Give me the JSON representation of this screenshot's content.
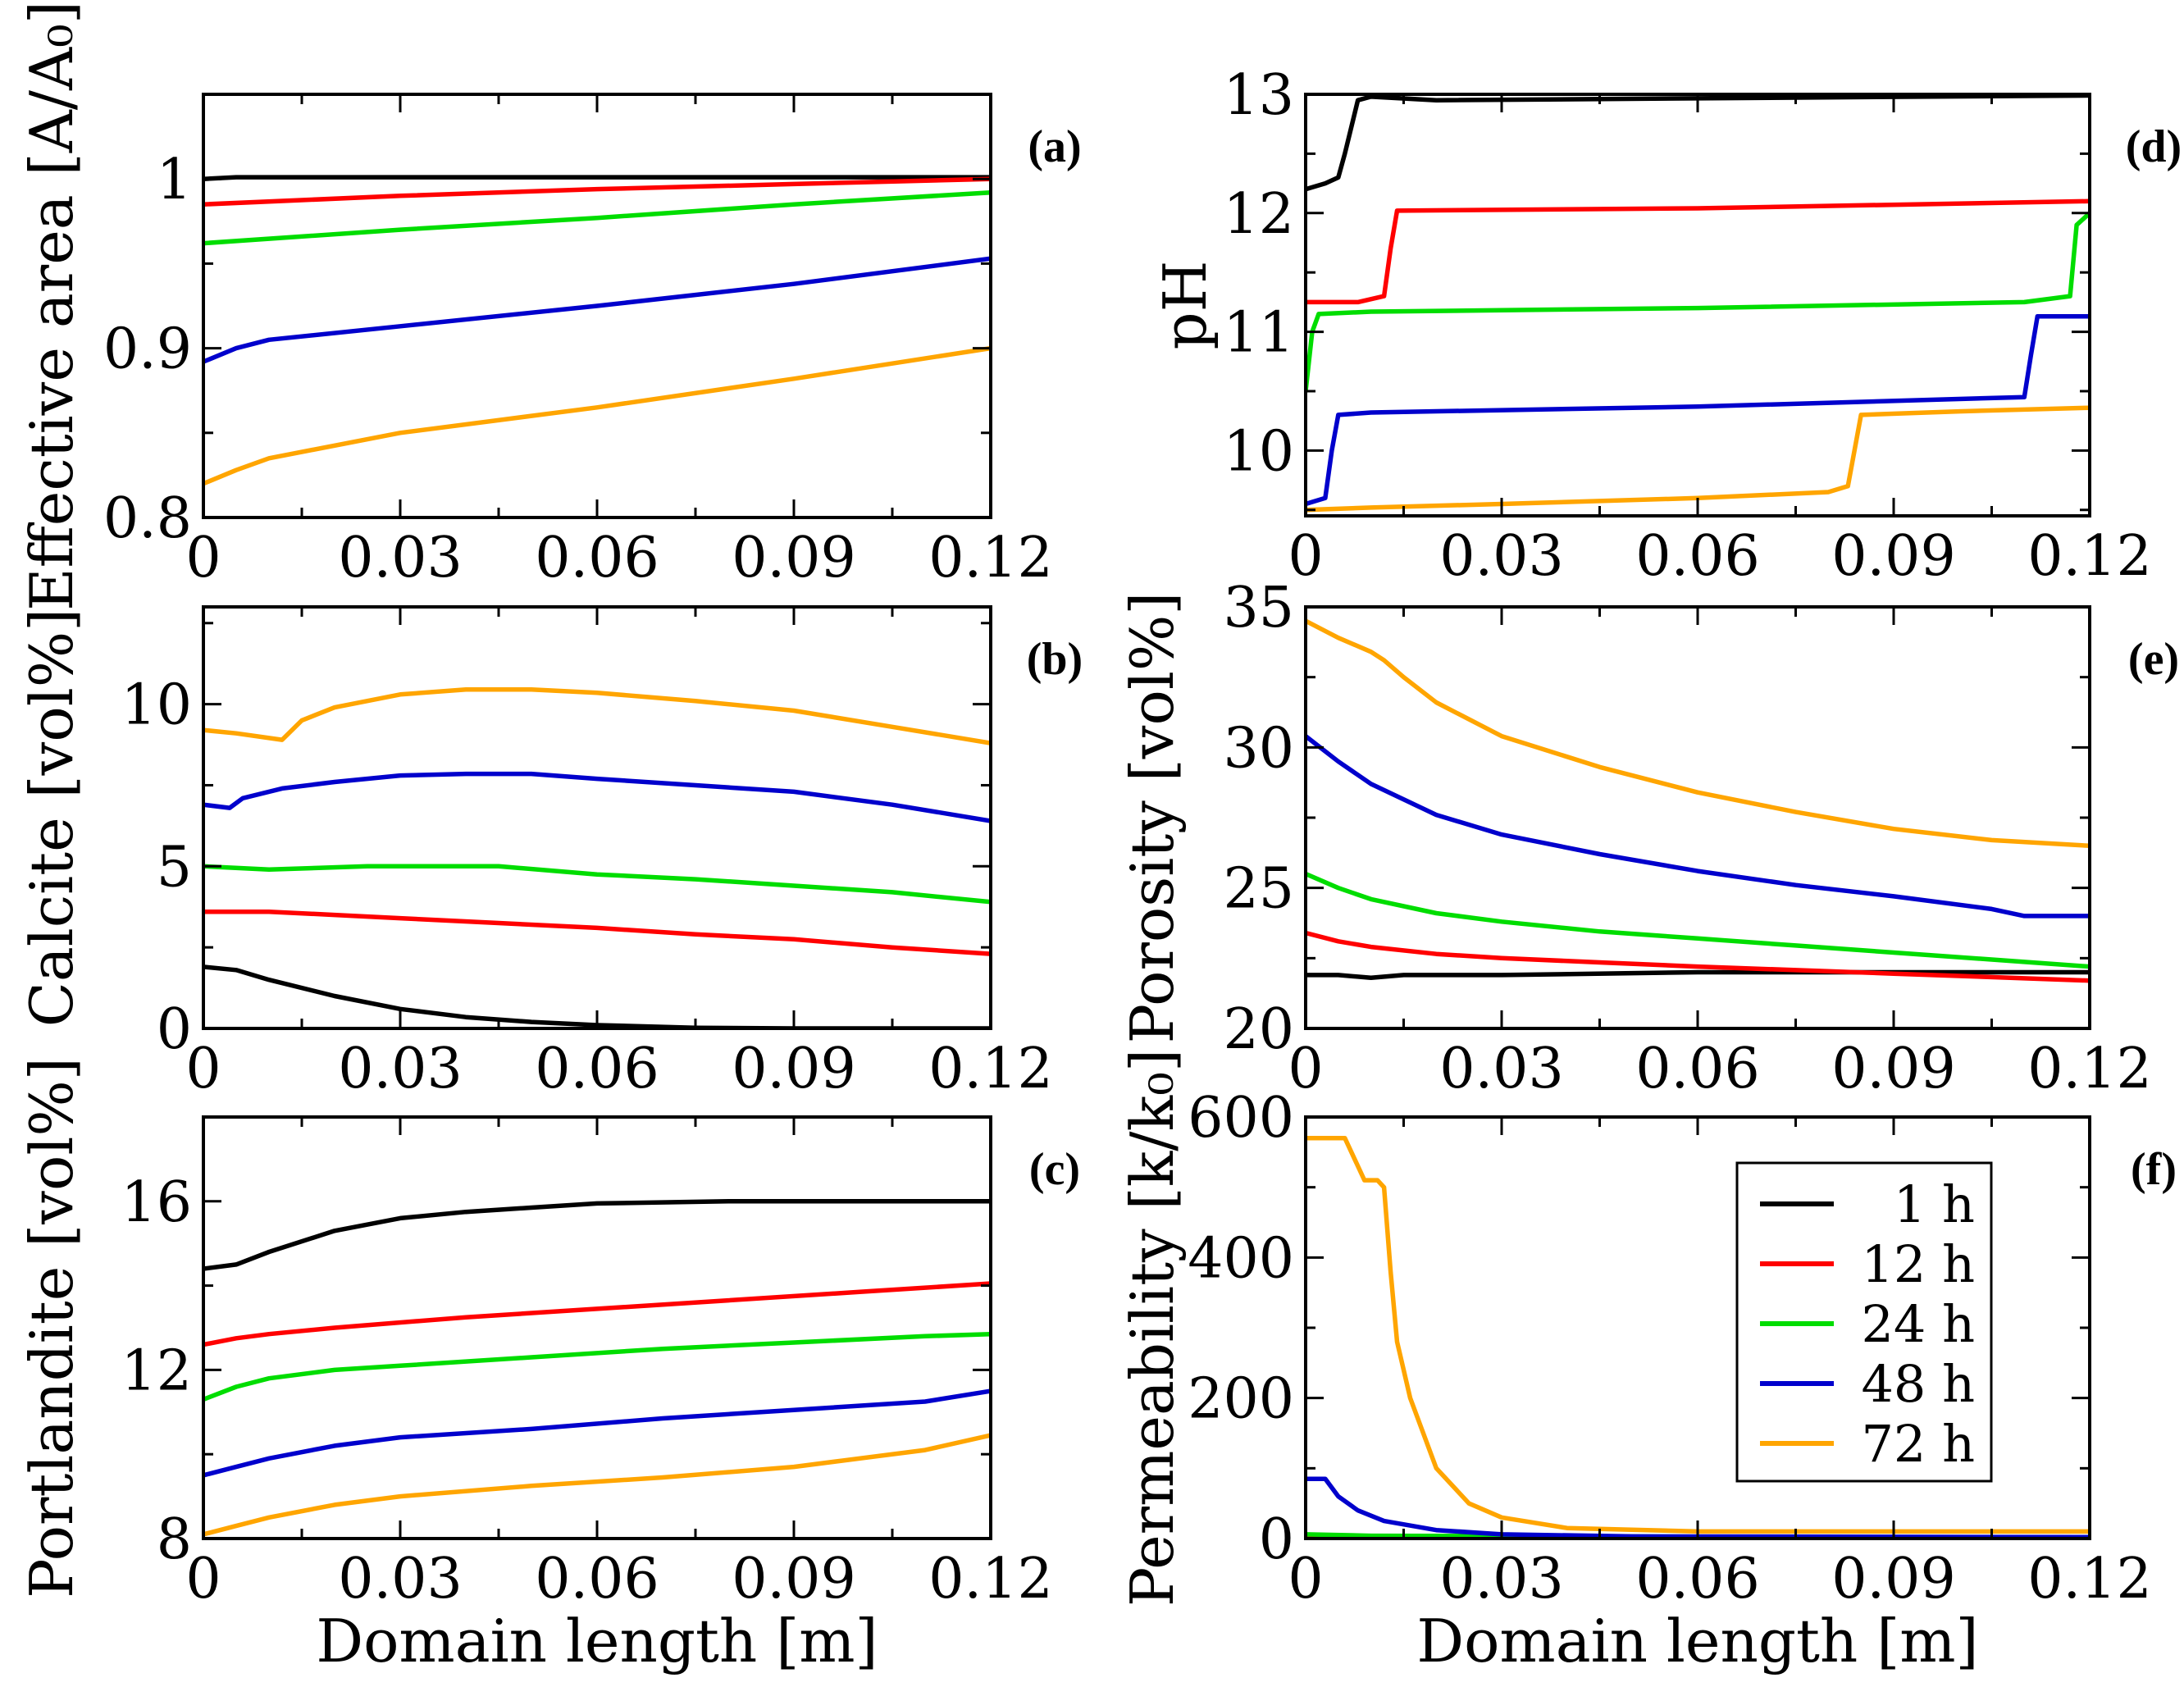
{
  "colors": {
    "1 h": "#000000",
    "12 h": "#ff0000",
    "24 h": "#00dd00",
    "48 h": "#0000cc",
    "72 h": "#ffa500"
  },
  "legend": {
    "panel": "f",
    "entries": [
      {
        "label": "1 h",
        "color": "#000000"
      },
      {
        "label": "12 h",
        "color": "#ff0000"
      },
      {
        "label": "24 h",
        "color": "#00dd00"
      },
      {
        "label": "48 h",
        "color": "#0000cc"
      },
      {
        "label": "72 h",
        "color": "#ffa500"
      }
    ]
  },
  "chart_data": [
    {
      "id": "a",
      "panel_label": "(a)",
      "type": "line",
      "ylabel": "Effective area [A/A₀]",
      "xlabel": "",
      "xlim": [
        0,
        0.12
      ],
      "ylim": [
        0.8,
        1.05
      ],
      "xticks": [
        0,
        0.03,
        0.06,
        0.09,
        0.12
      ],
      "xtick_labels": [
        "0",
        "0.03",
        "0.06",
        "0.09",
        "0.12"
      ],
      "yticks": [
        0.8,
        0.9,
        1.0
      ],
      "ytick_labels": [
        "0.8",
        "0.9",
        "1"
      ],
      "series": [
        {
          "name": "1 h",
          "x": [
            0,
            0.005,
            0.12
          ],
          "y": [
            1.0,
            1.001,
            1.001
          ]
        },
        {
          "name": "12 h",
          "x": [
            0,
            0.03,
            0.06,
            0.09,
            0.12
          ],
          "y": [
            0.985,
            0.99,
            0.994,
            0.997,
            1.0
          ]
        },
        {
          "name": "24 h",
          "x": [
            0,
            0.03,
            0.06,
            0.09,
            0.12
          ],
          "y": [
            0.962,
            0.97,
            0.977,
            0.985,
            0.992
          ]
        },
        {
          "name": "48 h",
          "x": [
            0,
            0.005,
            0.01,
            0.03,
            0.06,
            0.09,
            0.12
          ],
          "y": [
            0.892,
            0.9,
            0.905,
            0.913,
            0.925,
            0.938,
            0.953
          ]
        },
        {
          "name": "72 h",
          "x": [
            0,
            0.005,
            0.01,
            0.03,
            0.06,
            0.09,
            0.12
          ],
          "y": [
            0.82,
            0.828,
            0.835,
            0.85,
            0.865,
            0.882,
            0.9
          ]
        }
      ]
    },
    {
      "id": "b",
      "panel_label": "(b)",
      "type": "line",
      "ylabel": "Calcite [vol%]",
      "xlabel": "",
      "xlim": [
        0,
        0.12
      ],
      "ylim": [
        0,
        13
      ],
      "xticks": [
        0,
        0.03,
        0.06,
        0.09,
        0.12
      ],
      "xtick_labels": [
        "0",
        "0.03",
        "0.06",
        "0.09",
        "0.12"
      ],
      "yticks": [
        0,
        5,
        10
      ],
      "ytick_labels": [
        "0",
        "5",
        "10"
      ],
      "series": [
        {
          "name": "1 h",
          "x": [
            0,
            0.005,
            0.01,
            0.02,
            0.03,
            0.04,
            0.05,
            0.06,
            0.075,
            0.09,
            0.12
          ],
          "y": [
            1.9,
            1.8,
            1.5,
            1.0,
            0.6,
            0.35,
            0.2,
            0.1,
            0.02,
            0.0,
            0.0
          ]
        },
        {
          "name": "12 h",
          "x": [
            0,
            0.01,
            0.02,
            0.03,
            0.045,
            0.06,
            0.075,
            0.09,
            0.105,
            0.12
          ],
          "y": [
            3.6,
            3.6,
            3.5,
            3.4,
            3.25,
            3.1,
            2.9,
            2.75,
            2.5,
            2.3
          ]
        },
        {
          "name": "24 h",
          "x": [
            0,
            0.01,
            0.025,
            0.045,
            0.06,
            0.075,
            0.09,
            0.105,
            0.12
          ],
          "y": [
            5.0,
            4.9,
            5.0,
            5.0,
            4.75,
            4.6,
            4.4,
            4.2,
            3.9
          ]
        },
        {
          "name": "48 h",
          "x": [
            0,
            0.004,
            0.006,
            0.012,
            0.02,
            0.03,
            0.04,
            0.05,
            0.06,
            0.075,
            0.09,
            0.105,
            0.12
          ],
          "y": [
            6.9,
            6.8,
            7.1,
            7.4,
            7.6,
            7.8,
            7.85,
            7.85,
            7.7,
            7.5,
            7.3,
            6.9,
            6.4
          ]
        },
        {
          "name": "72 h",
          "x": [
            0,
            0.005,
            0.012,
            0.015,
            0.02,
            0.03,
            0.04,
            0.05,
            0.06,
            0.075,
            0.09,
            0.105,
            0.12
          ],
          "y": [
            9.2,
            9.1,
            8.9,
            9.5,
            9.9,
            10.3,
            10.45,
            10.45,
            10.35,
            10.1,
            9.8,
            9.3,
            8.8
          ]
        }
      ]
    },
    {
      "id": "c",
      "panel_label": "(c)",
      "type": "line",
      "ylabel": "Portlandite [vol%]",
      "xlabel": "Domain length [m]",
      "xlim": [
        0,
        0.12
      ],
      "ylim": [
        8,
        18
      ],
      "xticks": [
        0,
        0.03,
        0.06,
        0.09,
        0.12
      ],
      "xtick_labels": [
        "0",
        "0.03",
        "0.06",
        "0.09",
        "0.12"
      ],
      "yticks": [
        8,
        12,
        16
      ],
      "ytick_labels": [
        "8",
        "12",
        "16"
      ],
      "series": [
        {
          "name": "1 h",
          "x": [
            0,
            0.005,
            0.01,
            0.02,
            0.03,
            0.04,
            0.05,
            0.06,
            0.08,
            0.1,
            0.12
          ],
          "y": [
            14.4,
            14.5,
            14.8,
            15.3,
            15.6,
            15.75,
            15.85,
            15.95,
            16.0,
            16.0,
            16.0
          ]
        },
        {
          "name": "12 h",
          "x": [
            0,
            0.005,
            0.01,
            0.02,
            0.04,
            0.06,
            0.08,
            0.1,
            0.12
          ],
          "y": [
            12.6,
            12.75,
            12.85,
            13.0,
            13.25,
            13.45,
            13.65,
            13.85,
            14.05
          ]
        },
        {
          "name": "24 h",
          "x": [
            0,
            0.005,
            0.01,
            0.02,
            0.03,
            0.05,
            0.07,
            0.09,
            0.11,
            0.12
          ],
          "y": [
            11.3,
            11.6,
            11.8,
            12.0,
            12.1,
            12.3,
            12.5,
            12.65,
            12.8,
            12.85
          ]
        },
        {
          "name": "48 h",
          "x": [
            0,
            0.005,
            0.01,
            0.02,
            0.03,
            0.05,
            0.07,
            0.09,
            0.11,
            0.12
          ],
          "y": [
            9.5,
            9.7,
            9.9,
            10.2,
            10.4,
            10.6,
            10.85,
            11.05,
            11.25,
            11.5
          ]
        },
        {
          "name": "72 h",
          "x": [
            0,
            0.005,
            0.01,
            0.02,
            0.03,
            0.05,
            0.07,
            0.09,
            0.11,
            0.12
          ],
          "y": [
            8.1,
            8.3,
            8.5,
            8.8,
            9.0,
            9.25,
            9.45,
            9.7,
            10.1,
            10.45
          ]
        }
      ]
    },
    {
      "id": "d",
      "panel_label": "(d)",
      "type": "line",
      "ylabel": "pH",
      "xlabel": "",
      "xlim": [
        0,
        0.12
      ],
      "ylim": [
        9.45,
        13
      ],
      "xticks": [
        0,
        0.03,
        0.06,
        0.09,
        0.12
      ],
      "xtick_labels": [
        "0",
        "0.03",
        "0.06",
        "0.09",
        "0.12"
      ],
      "yticks": [
        10,
        11,
        12,
        13
      ],
      "ytick_labels": [
        "10",
        "11",
        "12",
        "13"
      ],
      "series": [
        {
          "name": "1 h",
          "x": [
            0,
            0.003,
            0.005,
            0.006,
            0.008,
            0.01,
            0.02,
            0.12
          ],
          "y": [
            12.2,
            12.25,
            12.3,
            12.5,
            12.95,
            12.98,
            12.95,
            12.99
          ]
        },
        {
          "name": "12 h",
          "x": [
            0,
            0.008,
            0.012,
            0.013,
            0.014,
            0.06,
            0.12
          ],
          "y": [
            11.25,
            11.25,
            11.3,
            11.7,
            12.02,
            12.04,
            12.1
          ]
        },
        {
          "name": "24 h",
          "x": [
            0,
            0.001,
            0.002,
            0.01,
            0.06,
            0.11,
            0.117,
            0.118,
            0.12
          ],
          "y": [
            10.5,
            11.0,
            11.15,
            11.17,
            11.2,
            11.25,
            11.3,
            11.9,
            12.0
          ]
        },
        {
          "name": "48 h",
          "x": [
            0,
            0.003,
            0.004,
            0.005,
            0.01,
            0.06,
            0.11,
            0.111,
            0.112,
            0.12
          ],
          "y": [
            9.55,
            9.6,
            10.0,
            10.3,
            10.32,
            10.37,
            10.45,
            10.8,
            11.13,
            11.13
          ]
        },
        {
          "name": "72 h",
          "x": [
            0,
            0.01,
            0.03,
            0.06,
            0.08,
            0.083,
            0.084,
            0.085,
            0.1,
            0.12
          ],
          "y": [
            9.5,
            9.52,
            9.55,
            9.6,
            9.65,
            9.7,
            10.0,
            10.3,
            10.33,
            10.36
          ]
        }
      ]
    },
    {
      "id": "e",
      "panel_label": "(e)",
      "type": "line",
      "ylabel": "Porosity [vol%]",
      "xlabel": "",
      "xlim": [
        0,
        0.12
      ],
      "ylim": [
        20,
        35
      ],
      "xticks": [
        0,
        0.03,
        0.06,
        0.09,
        0.12
      ],
      "xtick_labels": [
        "0",
        "0.03",
        "0.06",
        "0.09",
        "0.12"
      ],
      "yticks": [
        20,
        25,
        30,
        35
      ],
      "ytick_labels": [
        "20",
        "25",
        "30",
        "35"
      ],
      "series": [
        {
          "name": "1 h",
          "x": [
            0,
            0.005,
            0.01,
            0.015,
            0.03,
            0.06,
            0.09,
            0.12
          ],
          "y": [
            21.9,
            21.9,
            21.8,
            21.9,
            21.9,
            22.0,
            22.0,
            22.0
          ]
        },
        {
          "name": "12 h",
          "x": [
            0,
            0.005,
            0.01,
            0.02,
            0.03,
            0.045,
            0.06,
            0.09,
            0.12
          ],
          "y": [
            23.4,
            23.1,
            22.9,
            22.65,
            22.5,
            22.35,
            22.2,
            21.95,
            21.7
          ]
        },
        {
          "name": "24 h",
          "x": [
            0,
            0.005,
            0.01,
            0.02,
            0.03,
            0.045,
            0.06,
            0.075,
            0.09,
            0.105,
            0.12
          ],
          "y": [
            25.5,
            25.0,
            24.6,
            24.1,
            23.8,
            23.45,
            23.2,
            22.95,
            22.7,
            22.45,
            22.2
          ]
        },
        {
          "name": "48 h",
          "x": [
            0,
            0.005,
            0.01,
            0.02,
            0.03,
            0.045,
            0.06,
            0.075,
            0.09,
            0.105,
            0.11,
            0.12
          ],
          "y": [
            30.4,
            29.5,
            28.7,
            27.6,
            26.9,
            26.2,
            25.6,
            25.1,
            24.7,
            24.25,
            24.0,
            24.0
          ]
        },
        {
          "name": "72 h",
          "x": [
            0,
            0.005,
            0.01,
            0.012,
            0.015,
            0.02,
            0.03,
            0.045,
            0.06,
            0.075,
            0.09,
            0.105,
            0.12
          ],
          "y": [
            34.5,
            33.9,
            33.4,
            33.1,
            32.5,
            31.6,
            30.4,
            29.3,
            28.4,
            27.7,
            27.1,
            26.7,
            26.5
          ]
        }
      ]
    },
    {
      "id": "f",
      "panel_label": "(f)",
      "type": "line",
      "ylabel": "Permeability [k/k₀]",
      "xlabel": "Domain length [m]",
      "xlim": [
        0,
        0.12
      ],
      "ylim": [
        0,
        600
      ],
      "xticks": [
        0,
        0.03,
        0.06,
        0.09,
        0.12
      ],
      "xtick_labels": [
        "0",
        "0.03",
        "0.06",
        "0.09",
        "0.12"
      ],
      "yticks": [
        0,
        200,
        400,
        600
      ],
      "ytick_labels": [
        "0",
        "200",
        "400",
        "600"
      ],
      "series": [
        {
          "name": "1 h",
          "x": [
            0,
            0.12
          ],
          "y": [
            1,
            1
          ]
        },
        {
          "name": "12 h",
          "x": [
            0,
            0.12
          ],
          "y": [
            3,
            1
          ]
        },
        {
          "name": "24 h",
          "x": [
            0,
            0.01,
            0.12
          ],
          "y": [
            6,
            4,
            1
          ]
        },
        {
          "name": "48 h",
          "x": [
            0,
            0.003,
            0.005,
            0.008,
            0.012,
            0.02,
            0.03,
            0.05,
            0.12
          ],
          "y": [
            85,
            85,
            60,
            40,
            25,
            12,
            6,
            3,
            2
          ]
        },
        {
          "name": "72 h",
          "x": [
            0,
            0.006,
            0.009,
            0.011,
            0.012,
            0.013,
            0.014,
            0.016,
            0.02,
            0.025,
            0.03,
            0.04,
            0.06,
            0.12
          ],
          "y": [
            570,
            570,
            510,
            510,
            500,
            380,
            280,
            200,
            100,
            50,
            30,
            15,
            10,
            10
          ]
        }
      ]
    }
  ]
}
